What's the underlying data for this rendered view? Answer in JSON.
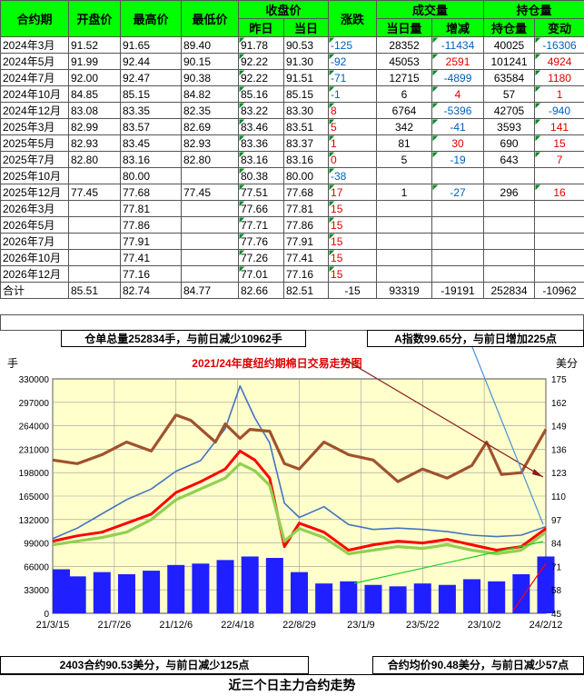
{
  "table": {
    "h1": {
      "contract": "合约期",
      "open": "开盘价",
      "high": "最高价",
      "low": "最低价",
      "close": "收盘价",
      "change": "涨跌",
      "volume": "成交量",
      "vol_change": "增减",
      "oi": "持仓量",
      "oi_change": "变动"
    },
    "h2": {
      "prev": "昨日",
      "today": "当日",
      "vol_today": "当日量"
    },
    "rows": [
      {
        "c": "2024年3月",
        "o": "91.52",
        "h": "91.65",
        "l": "89.40",
        "p": "91.78",
        "t": "90.53",
        "ch": "-125",
        "v": "28352",
        "vc": "-11434",
        "oi": "40025",
        "oc": "-16306"
      },
      {
        "c": "2024年5月",
        "o": "91.99",
        "h": "92.44",
        "l": "90.15",
        "p": "92.22",
        "t": "91.30",
        "ch": "-92",
        "v": "45053",
        "vc": "2591",
        "oi": "101241",
        "oc": "4924"
      },
      {
        "c": "2024年7月",
        "o": "92.00",
        "h": "92.47",
        "l": "90.38",
        "p": "92.22",
        "t": "91.51",
        "ch": "-71",
        "v": "12715",
        "vc": "-4899",
        "oi": "63584",
        "oc": "1180"
      },
      {
        "c": "2024年10月",
        "o": "84.85",
        "h": "85.15",
        "l": "84.82",
        "p": "85.16",
        "t": "85.15",
        "ch": "-1",
        "v": "6",
        "vc": "4",
        "oi": "57",
        "oc": "1"
      },
      {
        "c": "2024年12月",
        "o": "83.08",
        "h": "83.35",
        "l": "82.35",
        "p": "83.22",
        "t": "83.30",
        "ch": "8",
        "v": "6764",
        "vc": "-5396",
        "oi": "42705",
        "oc": "-940"
      },
      {
        "c": "2025年3月",
        "o": "82.99",
        "h": "83.57",
        "l": "82.69",
        "p": "83.46",
        "t": "83.51",
        "ch": "5",
        "v": "342",
        "vc": "-41",
        "oi": "3593",
        "oc": "141"
      },
      {
        "c": "2025年5月",
        "o": "82.93",
        "h": "83.45",
        "l": "82.93",
        "p": "83.36",
        "t": "83.37",
        "ch": "1",
        "v": "81",
        "vc": "30",
        "oi": "690",
        "oc": "15"
      },
      {
        "c": "2025年7月",
        "o": "82.80",
        "h": "83.16",
        "l": "82.80",
        "p": "83.16",
        "t": "83.16",
        "ch": "0",
        "v": "5",
        "vc": "-19",
        "oi": "643",
        "oc": "7"
      },
      {
        "c": "2025年10月",
        "o": "",
        "h": "80.00",
        "l": "",
        "p": "80.38",
        "t": "80.00",
        "ch": "-38",
        "v": "",
        "vc": "",
        "oi": "",
        "oc": ""
      },
      {
        "c": "2025年12月",
        "o": "77.45",
        "h": "77.68",
        "l": "77.45",
        "p": "77.51",
        "t": "77.68",
        "ch": "17",
        "v": "1",
        "vc": "-27",
        "oi": "296",
        "oc": "16"
      },
      {
        "c": "2026年3月",
        "o": "",
        "h": "77.81",
        "l": "",
        "p": "77.66",
        "t": "77.81",
        "ch": "15",
        "v": "",
        "vc": "",
        "oi": "",
        "oc": ""
      },
      {
        "c": "2026年5月",
        "o": "",
        "h": "77.86",
        "l": "",
        "p": "77.71",
        "t": "77.86",
        "ch": "15",
        "v": "",
        "vc": "",
        "oi": "",
        "oc": ""
      },
      {
        "c": "2026年7月",
        "o": "",
        "h": "77.91",
        "l": "",
        "p": "77.76",
        "t": "77.91",
        "ch": "15",
        "v": "",
        "vc": "",
        "oi": "",
        "oc": ""
      },
      {
        "c": "2026年10月",
        "o": "",
        "h": "77.41",
        "l": "",
        "p": "77.26",
        "t": "77.41",
        "ch": "15",
        "v": "",
        "vc": "",
        "oi": "",
        "oc": ""
      },
      {
        "c": "2026年12月",
        "o": "",
        "h": "77.16",
        "l": "",
        "p": "77.01",
        "t": "77.16",
        "ch": "15",
        "v": "",
        "vc": "",
        "oi": "",
        "oc": ""
      }
    ],
    "total": {
      "c": "合计",
      "o": "85.51",
      "h": "82.74",
      "l": "84.77",
      "p": "82.66",
      "t": "82.51",
      "ch": "-15",
      "v": "93319",
      "vc": "-19191",
      "oi": "252834",
      "oc": "-10962"
    }
  },
  "notes": {
    "oi_total": "仓单总量252834手，与前日减少10962手",
    "a_index": "A指数99.65分，与前日增加225点",
    "contract_2403": "2403合约90.53美分，与前日减少125点",
    "avg_price": "合约均价90.48美分，与前日减少57点"
  },
  "footer": "近三个日主力合约走势",
  "colors": {
    "header_green": "#00ff00",
    "chart_bg": "#ffffcc",
    "volume_bar": "#1f1fff",
    "oi_line": "#4472c4",
    "index_line": "#a0522d",
    "contract_line": "#ff0000",
    "avg_line": "#92d050"
  },
  "chart_data": {
    "type": "line",
    "title": "2021/24年度纽约期棉日交易走势图",
    "ylabel_left": "手",
    "ylabel_right": "美分",
    "ylim_left": [
      0,
      330000
    ],
    "yticks_left": [
      "0",
      "33000",
      "66000",
      "99000",
      "132000",
      "165000",
      "198000",
      "231000",
      "264000",
      "297000",
      "330000"
    ],
    "ylim_right": [
      45,
      175
    ],
    "yticks_right": [
      "45",
      "58",
      "71",
      "84",
      "97",
      "110",
      "123",
      "136",
      "149",
      "162",
      "175"
    ],
    "xtick_labels": [
      "21/3/15",
      "21/7/26",
      "21/12/6",
      "22/4/18",
      "22/8/29",
      "23/1/9",
      "23/5/22",
      "23/10/2",
      "24/2/12"
    ],
    "grid": true,
    "series": [
      {
        "kind": "bar",
        "axis": "left",
        "points": [
          [
            0,
            62000
          ],
          [
            0.05,
            52000
          ],
          [
            0.1,
            58000
          ],
          [
            0.15,
            55000
          ],
          [
            0.2,
            60000
          ],
          [
            0.25,
            68000
          ],
          [
            0.3,
            70000
          ],
          [
            0.35,
            75000
          ],
          [
            0.4,
            80000
          ],
          [
            0.45,
            78000
          ],
          [
            0.5,
            58000
          ],
          [
            0.55,
            42000
          ],
          [
            0.6,
            45000
          ],
          [
            0.65,
            40000
          ],
          [
            0.7,
            38000
          ],
          [
            0.75,
            42000
          ],
          [
            0.8,
            40000
          ],
          [
            0.85,
            48000
          ],
          [
            0.9,
            45000
          ],
          [
            0.95,
            55000
          ],
          [
            1,
            80000
          ]
        ]
      },
      {
        "kind": "line",
        "axis": "left",
        "points": [
          [
            0,
            105000
          ],
          [
            0.05,
            120000
          ],
          [
            0.1,
            140000
          ],
          [
            0.15,
            160000
          ],
          [
            0.2,
            175000
          ],
          [
            0.25,
            200000
          ],
          [
            0.3,
            215000
          ],
          [
            0.35,
            260000
          ],
          [
            0.38,
            320000
          ],
          [
            0.41,
            275000
          ],
          [
            0.44,
            240000
          ],
          [
            0.47,
            155000
          ],
          [
            0.5,
            135000
          ],
          [
            0.55,
            150000
          ],
          [
            0.6,
            125000
          ],
          [
            0.65,
            118000
          ],
          [
            0.7,
            120000
          ],
          [
            0.75,
            118000
          ],
          [
            0.8,
            115000
          ],
          [
            0.85,
            110000
          ],
          [
            0.9,
            108000
          ],
          [
            0.95,
            110000
          ],
          [
            1,
            122000
          ]
        ]
      },
      {
        "kind": "line",
        "axis": "right",
        "points": [
          [
            0,
            130
          ],
          [
            0.05,
            128
          ],
          [
            0.1,
            133
          ],
          [
            0.15,
            140
          ],
          [
            0.2,
            135
          ],
          [
            0.25,
            155
          ],
          [
            0.28,
            152
          ],
          [
            0.33,
            140
          ],
          [
            0.35,
            150
          ],
          [
            0.38,
            142
          ],
          [
            0.4,
            147
          ],
          [
            0.44,
            146
          ],
          [
            0.47,
            128
          ],
          [
            0.5,
            125
          ],
          [
            0.55,
            140
          ],
          [
            0.6,
            133
          ],
          [
            0.65,
            130
          ],
          [
            0.7,
            118
          ],
          [
            0.75,
            125
          ],
          [
            0.8,
            120
          ],
          [
            0.85,
            127
          ],
          [
            0.88,
            140
          ],
          [
            0.91,
            122
          ],
          [
            0.95,
            123
          ],
          [
            1,
            147
          ]
        ]
      },
      {
        "kind": "line",
        "axis": "right",
        "points": [
          [
            0,
            85
          ],
          [
            0.05,
            88
          ],
          [
            0.1,
            90
          ],
          [
            0.15,
            95
          ],
          [
            0.2,
            100
          ],
          [
            0.25,
            112
          ],
          [
            0.3,
            118
          ],
          [
            0.35,
            125
          ],
          [
            0.38,
            135
          ],
          [
            0.41,
            130
          ],
          [
            0.44,
            120
          ],
          [
            0.47,
            82
          ],
          [
            0.5,
            95
          ],
          [
            0.55,
            90
          ],
          [
            0.6,
            80
          ],
          [
            0.65,
            83
          ],
          [
            0.7,
            85
          ],
          [
            0.75,
            84
          ],
          [
            0.8,
            86
          ],
          [
            0.85,
            83
          ],
          [
            0.9,
            80
          ],
          [
            0.95,
            82
          ],
          [
            1,
            92
          ]
        ]
      },
      {
        "kind": "line",
        "axis": "right",
        "points": [
          [
            0,
            83
          ],
          [
            0.05,
            85
          ],
          [
            0.1,
            87
          ],
          [
            0.15,
            90
          ],
          [
            0.2,
            97
          ],
          [
            0.25,
            108
          ],
          [
            0.3,
            114
          ],
          [
            0.35,
            120
          ],
          [
            0.38,
            128
          ],
          [
            0.41,
            124
          ],
          [
            0.44,
            116
          ],
          [
            0.47,
            85
          ],
          [
            0.5,
            92
          ],
          [
            0.55,
            87
          ],
          [
            0.6,
            78
          ],
          [
            0.65,
            80
          ],
          [
            0.7,
            82
          ],
          [
            0.75,
            81
          ],
          [
            0.8,
            83
          ],
          [
            0.85,
            80
          ],
          [
            0.9,
            78
          ],
          [
            0.95,
            80
          ],
          [
            1,
            90
          ]
        ]
      }
    ]
  }
}
